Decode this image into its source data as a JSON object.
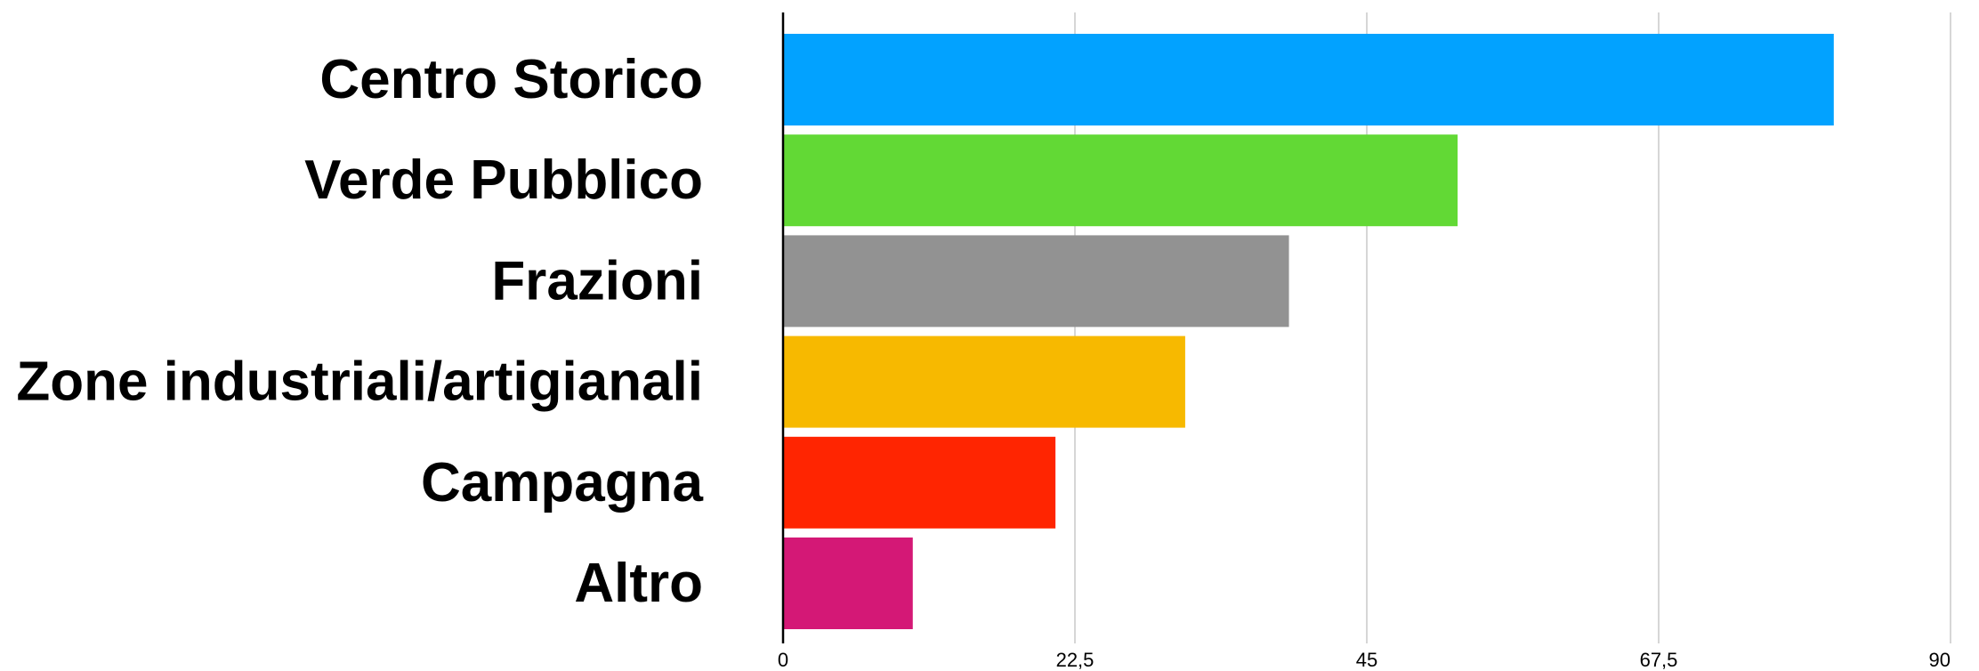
{
  "chart_data": {
    "type": "bar",
    "orientation": "horizontal",
    "title": "",
    "xlabel": "",
    "ylabel": "",
    "categories": [
      "Centro Storico",
      "Verde Pubblico",
      "Frazioni",
      "Zone industriali/artigianali",
      "Campagna",
      "Altro"
    ],
    "values": [
      81,
      52,
      39,
      31,
      21,
      10
    ],
    "colors": [
      "#02a2ff",
      "#62d935",
      "#929292",
      "#f7b900",
      "#ff2501",
      "#d41876"
    ],
    "xlim": [
      0,
      90
    ],
    "xticks": [
      "0",
      "22,5",
      "45",
      "67,5",
      "90"
    ],
    "xtick_values": [
      0,
      22.5,
      45,
      67.5,
      90
    ],
    "grid": "vertical",
    "legend": "none"
  }
}
